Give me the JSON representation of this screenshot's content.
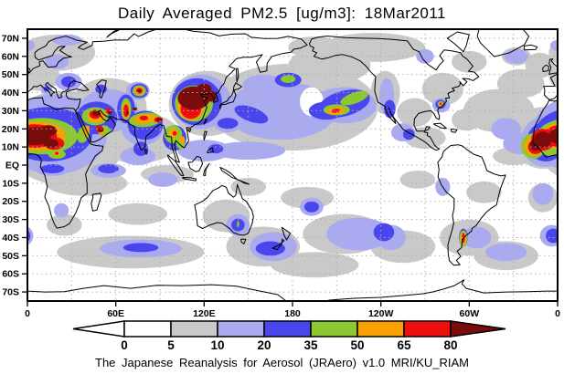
{
  "title": "Daily Averaged PM2.5 [ug/m3]: 18Mar2011",
  "caption": "The Japanese Reanalysis for Aerosol (JRAero) v1.0 MRI/KU_RIAM",
  "chart_data": {
    "type": "heatmap",
    "title": "Daily Averaged PM2.5 [ug/m3]: 18Mar2011",
    "variable": "PM2.5",
    "units": "ug/m3",
    "date": "18Mar2011",
    "source": "The Japanese Reanalysis for Aerosol (JRAero) v1.0 MRI/KU_RIAM",
    "projection": {
      "type": "equirectangular",
      "lon_range": [
        0,
        360
      ],
      "lat_range": [
        -75,
        75
      ]
    },
    "grid": {
      "lat_step": 10,
      "lon_step": 30,
      "style": "dotted",
      "color": "#b0b0b0"
    },
    "x_axis": {
      "ticks": [
        [
          0,
          "0"
        ],
        [
          60,
          "60E"
        ],
        [
          120,
          "120E"
        ],
        [
          180,
          "180"
        ],
        [
          240,
          "120W"
        ],
        [
          300,
          "60W"
        ],
        [
          360,
          "0"
        ]
      ]
    },
    "y_axis": {
      "ticks": [
        [
          70,
          "70N"
        ],
        [
          60,
          "60N"
        ],
        [
          50,
          "50N"
        ],
        [
          40,
          "40N"
        ],
        [
          30,
          "30N"
        ],
        [
          20,
          "20N"
        ],
        [
          10,
          "10N"
        ],
        [
          0,
          "EQ"
        ],
        [
          -10,
          "10S"
        ],
        [
          -20,
          "20S"
        ],
        [
          -30,
          "30S"
        ],
        [
          -40,
          "40S"
        ],
        [
          -50,
          "50S"
        ],
        [
          -60,
          "60S"
        ],
        [
          -70,
          "70S"
        ]
      ]
    },
    "colorbar": {
      "labels": [
        "0",
        "5",
        "10",
        "20",
        "35",
        "50",
        "65",
        "80"
      ],
      "segment_colors": [
        "#ffffff",
        "#c9c9c9",
        "#a9aaf0",
        "#4a46ee",
        "#8cc832",
        "#f7a200",
        "#ee0e0e"
      ],
      "below_color": "#ffffff",
      "above_color": "#7a0c0c",
      "outline": "#000000"
    },
    "palette": {
      "gray": "#c9c9c9",
      "lavender": "#a9aaf0",
      "white": "#ffffff",
      "blue": "#4a46ee",
      "green": "#8cc832",
      "orange": "#f7a200",
      "red": "#ee0e0e",
      "darkred": "#7a0c0c"
    },
    "region_order": [
      "gray",
      "lavender",
      "white",
      "blue",
      "green",
      "orange",
      "red",
      "darkred"
    ],
    "regions": {
      "gray": [
        [
          20,
          62,
          26,
          10
        ],
        [
          8,
          49,
          14,
          8
        ],
        [
          -12,
          55,
          10,
          7
        ],
        [
          25,
          15,
          42,
          26
        ],
        [
          -10,
          15,
          21,
          17
        ],
        [
          55,
          32,
          26,
          16
        ],
        [
          75,
          15,
          30,
          14
        ],
        [
          122,
          34,
          26,
          18
        ],
        [
          180,
          32,
          58,
          24
        ],
        [
          205,
          55,
          28,
          10
        ],
        [
          235,
          65,
          35,
          8
        ],
        [
          243,
          40,
          10,
          12
        ],
        [
          282,
          42,
          14,
          9
        ],
        [
          263,
          29,
          12,
          8
        ],
        [
          270,
          15,
          14,
          6
        ],
        [
          320,
          30,
          24,
          12
        ],
        [
          335,
          45,
          16,
          8
        ],
        [
          300,
          57,
          12,
          6
        ],
        [
          332,
          60,
          10,
          5
        ],
        [
          40,
          -10,
          28,
          7
        ],
        [
          75,
          -27,
          20,
          6
        ],
        [
          70,
          -48,
          50,
          9
        ],
        [
          25,
          -33,
          12,
          6
        ],
        [
          135,
          -28,
          16,
          9
        ],
        [
          160,
          -45,
          25,
          11
        ],
        [
          195,
          -55,
          30,
          7
        ],
        [
          215,
          -38,
          28,
          11
        ],
        [
          255,
          -45,
          22,
          9
        ],
        [
          300,
          -40,
          20,
          10
        ],
        [
          325,
          -50,
          22,
          8
        ],
        [
          350,
          -18,
          10,
          8
        ],
        [
          190,
          -18,
          18,
          6
        ],
        [
          150,
          -12,
          12,
          5
        ],
        [
          95,
          -5,
          18,
          5
        ],
        [
          310,
          -15,
          12,
          6
        ],
        [
          195,
          65,
          18,
          6
        ],
        [
          298,
          25,
          10,
          6
        ],
        [
          330,
          5,
          14,
          5
        ],
        [
          265,
          -8,
          12,
          5
        ]
      ],
      "lavender": [
        [
          18,
          17,
          36,
          22
        ],
        [
          -8,
          13,
          17,
          14
        ],
        [
          55,
          30,
          20,
          12
        ],
        [
          75,
          41,
          8,
          5
        ],
        [
          78,
          20,
          14,
          9
        ],
        [
          118,
          35,
          20,
          15
        ],
        [
          172,
          30,
          38,
          16
        ],
        [
          215,
          33,
          22,
          10
        ],
        [
          160,
          44,
          14,
          6
        ],
        [
          136,
          24,
          10,
          6
        ],
        [
          150,
          8,
          25,
          5
        ],
        [
          120,
          8,
          18,
          6
        ],
        [
          75,
          5,
          12,
          5
        ],
        [
          20,
          57,
          8,
          4
        ],
        [
          28,
          46,
          9,
          5
        ],
        [
          13,
          42,
          4,
          3
        ],
        [
          27,
          69,
          10,
          3
        ],
        [
          0,
          66,
          5,
          3
        ],
        [
          244,
          38,
          5,
          10
        ],
        [
          281,
          33,
          6,
          4
        ],
        [
          270,
          60,
          6,
          4
        ],
        [
          255,
          18,
          8,
          5
        ],
        [
          325,
          20,
          10,
          6
        ],
        [
          335,
          12,
          12,
          6
        ],
        [
          17,
          -2,
          12,
          4
        ],
        [
          55,
          -3,
          12,
          4
        ],
        [
          23,
          -25,
          5,
          4
        ],
        [
          77,
          -46,
          28,
          5
        ],
        [
          143,
          -33,
          8,
          6
        ],
        [
          167,
          -45,
          16,
          8
        ],
        [
          193,
          -23,
          8,
          5
        ],
        [
          225,
          -38,
          22,
          9
        ],
        [
          247,
          -40,
          10,
          7
        ],
        [
          305,
          -40,
          10,
          6
        ],
        [
          325,
          -48,
          14,
          5
        ],
        [
          350,
          -16,
          7,
          6
        ],
        [
          92,
          -8,
          10,
          4
        ],
        [
          282,
          -12,
          5,
          5
        ],
        [
          332,
          60,
          8,
          4
        ],
        [
          356,
          -39,
          8,
          6
        ]
      ],
      "white": [
        [
          193,
          35,
          8,
          8
        ]
      ],
      "blue": [
        [
          14,
          17,
          30,
          15
        ],
        [
          -8,
          13,
          13,
          11
        ],
        [
          47,
          26,
          14,
          9
        ],
        [
          67,
          31,
          6,
          8
        ],
        [
          76,
          41,
          6,
          4
        ],
        [
          80,
          22,
          12,
          8
        ],
        [
          77,
          9,
          5,
          4
        ],
        [
          115,
          35,
          17,
          13
        ],
        [
          100,
          15,
          8,
          7
        ],
        [
          136,
          23,
          7,
          3
        ],
        [
          128,
          9,
          5,
          2.5
        ],
        [
          152,
          28,
          12,
          4,
          20
        ],
        [
          177,
          47,
          9,
          4
        ],
        [
          215,
          34,
          18,
          7,
          -15
        ],
        [
          203,
          30,
          12,
          5
        ],
        [
          17,
          -2,
          8,
          2.5
        ],
        [
          55,
          -2,
          7,
          2.5
        ],
        [
          50,
          42,
          4,
          2.5
        ],
        [
          28,
          46,
          5,
          3
        ],
        [
          13,
          42,
          2,
          1.5
        ],
        [
          246,
          31,
          4,
          5
        ],
        [
          259,
          17,
          4,
          3
        ],
        [
          280.5,
          33.5,
          3.5,
          2.5
        ],
        [
          143,
          -33,
          4.5,
          3.5
        ],
        [
          165,
          -46,
          10,
          4
        ],
        [
          193,
          -23,
          5,
          3
        ],
        [
          242,
          -37,
          7,
          5
        ],
        [
          77,
          -45.5,
          12,
          2.5
        ],
        [
          296,
          -40,
          3,
          5
        ],
        [
          357,
          -39,
          5,
          4
        ]
      ],
      "green": [
        [
          10,
          16,
          24,
          10
        ],
        [
          -5,
          14,
          9,
          9
        ],
        [
          -16.5,
          10.5,
          8.5,
          7
        ],
        [
          20,
          6,
          6,
          2.5
        ],
        [
          38,
          17,
          4,
          5,
          20
        ],
        [
          46,
          27,
          9,
          5
        ],
        [
          52,
          19,
          4,
          3
        ],
        [
          67,
          31,
          3.5,
          6
        ],
        [
          76,
          41,
          4.5,
          3
        ],
        [
          80,
          25,
          11,
          4,
          -5
        ],
        [
          113,
          34,
          13,
          10
        ],
        [
          99,
          17,
          6,
          5
        ],
        [
          104,
          12,
          3,
          3
        ],
        [
          177,
          47.5,
          5,
          2.2
        ],
        [
          222,
          37,
          10,
          3,
          -20
        ],
        [
          210,
          30.5,
          9,
          3
        ],
        [
          280.7,
          33.8,
          2.2,
          1.6
        ],
        [
          296,
          -40.5,
          2.8,
          4.5
        ],
        [
          143,
          -32.5,
          0.8,
          1.8
        ]
      ],
      "orange": [
        [
          7,
          16,
          19,
          8
        ],
        [
          -16,
          10.5,
          6.5,
          5.5
        ],
        [
          -2,
          19,
          3.5,
          2.5
        ],
        [
          40,
          19,
          2,
          3,
          20
        ],
        [
          47,
          27,
          6,
          3.5
        ],
        [
          50,
          19,
          2.5,
          2
        ],
        [
          67,
          30,
          2.5,
          4.5
        ],
        [
          76,
          41,
          3,
          2.2
        ],
        [
          80,
          25.5,
          8,
          2.5,
          -5
        ],
        [
          111,
          32,
          9,
          7
        ],
        [
          99,
          17.5,
          3,
          2.5
        ],
        [
          105,
          14,
          2,
          2
        ],
        [
          209.5,
          30,
          6.5,
          2,
          -8
        ],
        [
          280.6,
          33.8,
          1.4,
          1
        ],
        [
          296,
          -40.3,
          1.8,
          3.6
        ],
        [
          20,
          6.5,
          2.5,
          1.2
        ]
      ],
      "red": [
        [
          5,
          16,
          15,
          6.5
        ],
        [
          18,
          12,
          7,
          3.5
        ],
        [
          -10,
          14,
          8,
          6
        ],
        [
          -15,
          10,
          5,
          4
        ],
        [
          46,
          28,
          4,
          2.5
        ],
        [
          49,
          20,
          2.5,
          2
        ],
        [
          55,
          30,
          2,
          1.5
        ],
        [
          67,
          30,
          1.8,
          3.5
        ],
        [
          76,
          41,
          2.2,
          1.6
        ],
        [
          79,
          26,
          3,
          1.3
        ],
        [
          89,
          25,
          3,
          1.5
        ],
        [
          111,
          31,
          7,
          5.5
        ],
        [
          100,
          17.5,
          1.5,
          1.2
        ],
        [
          209.5,
          30,
          3,
          1.1,
          -8
        ],
        [
          280.6,
          33.9,
          0.8,
          0.6
        ],
        [
          296,
          -40.2,
          1,
          2.8
        ],
        [
          20,
          6.5,
          1.2,
          0.8
        ]
      ],
      "darkred": [
        [
          5,
          16,
          11,
          5
        ],
        [
          14,
          19,
          6,
          3
        ],
        [
          16,
          12,
          5,
          2.5
        ],
        [
          -10,
          14,
          6,
          4.5
        ],
        [
          -15,
          11,
          4,
          3
        ],
        [
          46.5,
          28.5,
          2.5,
          1.5
        ],
        [
          50,
          19.5,
          1.8,
          1.2
        ],
        [
          56,
          29,
          1.5,
          1
        ],
        [
          76,
          41,
          1.2,
          0.9
        ],
        [
          89.5,
          25,
          2,
          1
        ],
        [
          73,
          31,
          1.5,
          0.8
        ],
        [
          113,
          37,
          11,
          6.5
        ],
        [
          120,
          42,
          5,
          3
        ],
        [
          125,
          38,
          3.5,
          3
        ],
        [
          68,
          29,
          0.8,
          1.5
        ]
      ]
    }
  }
}
